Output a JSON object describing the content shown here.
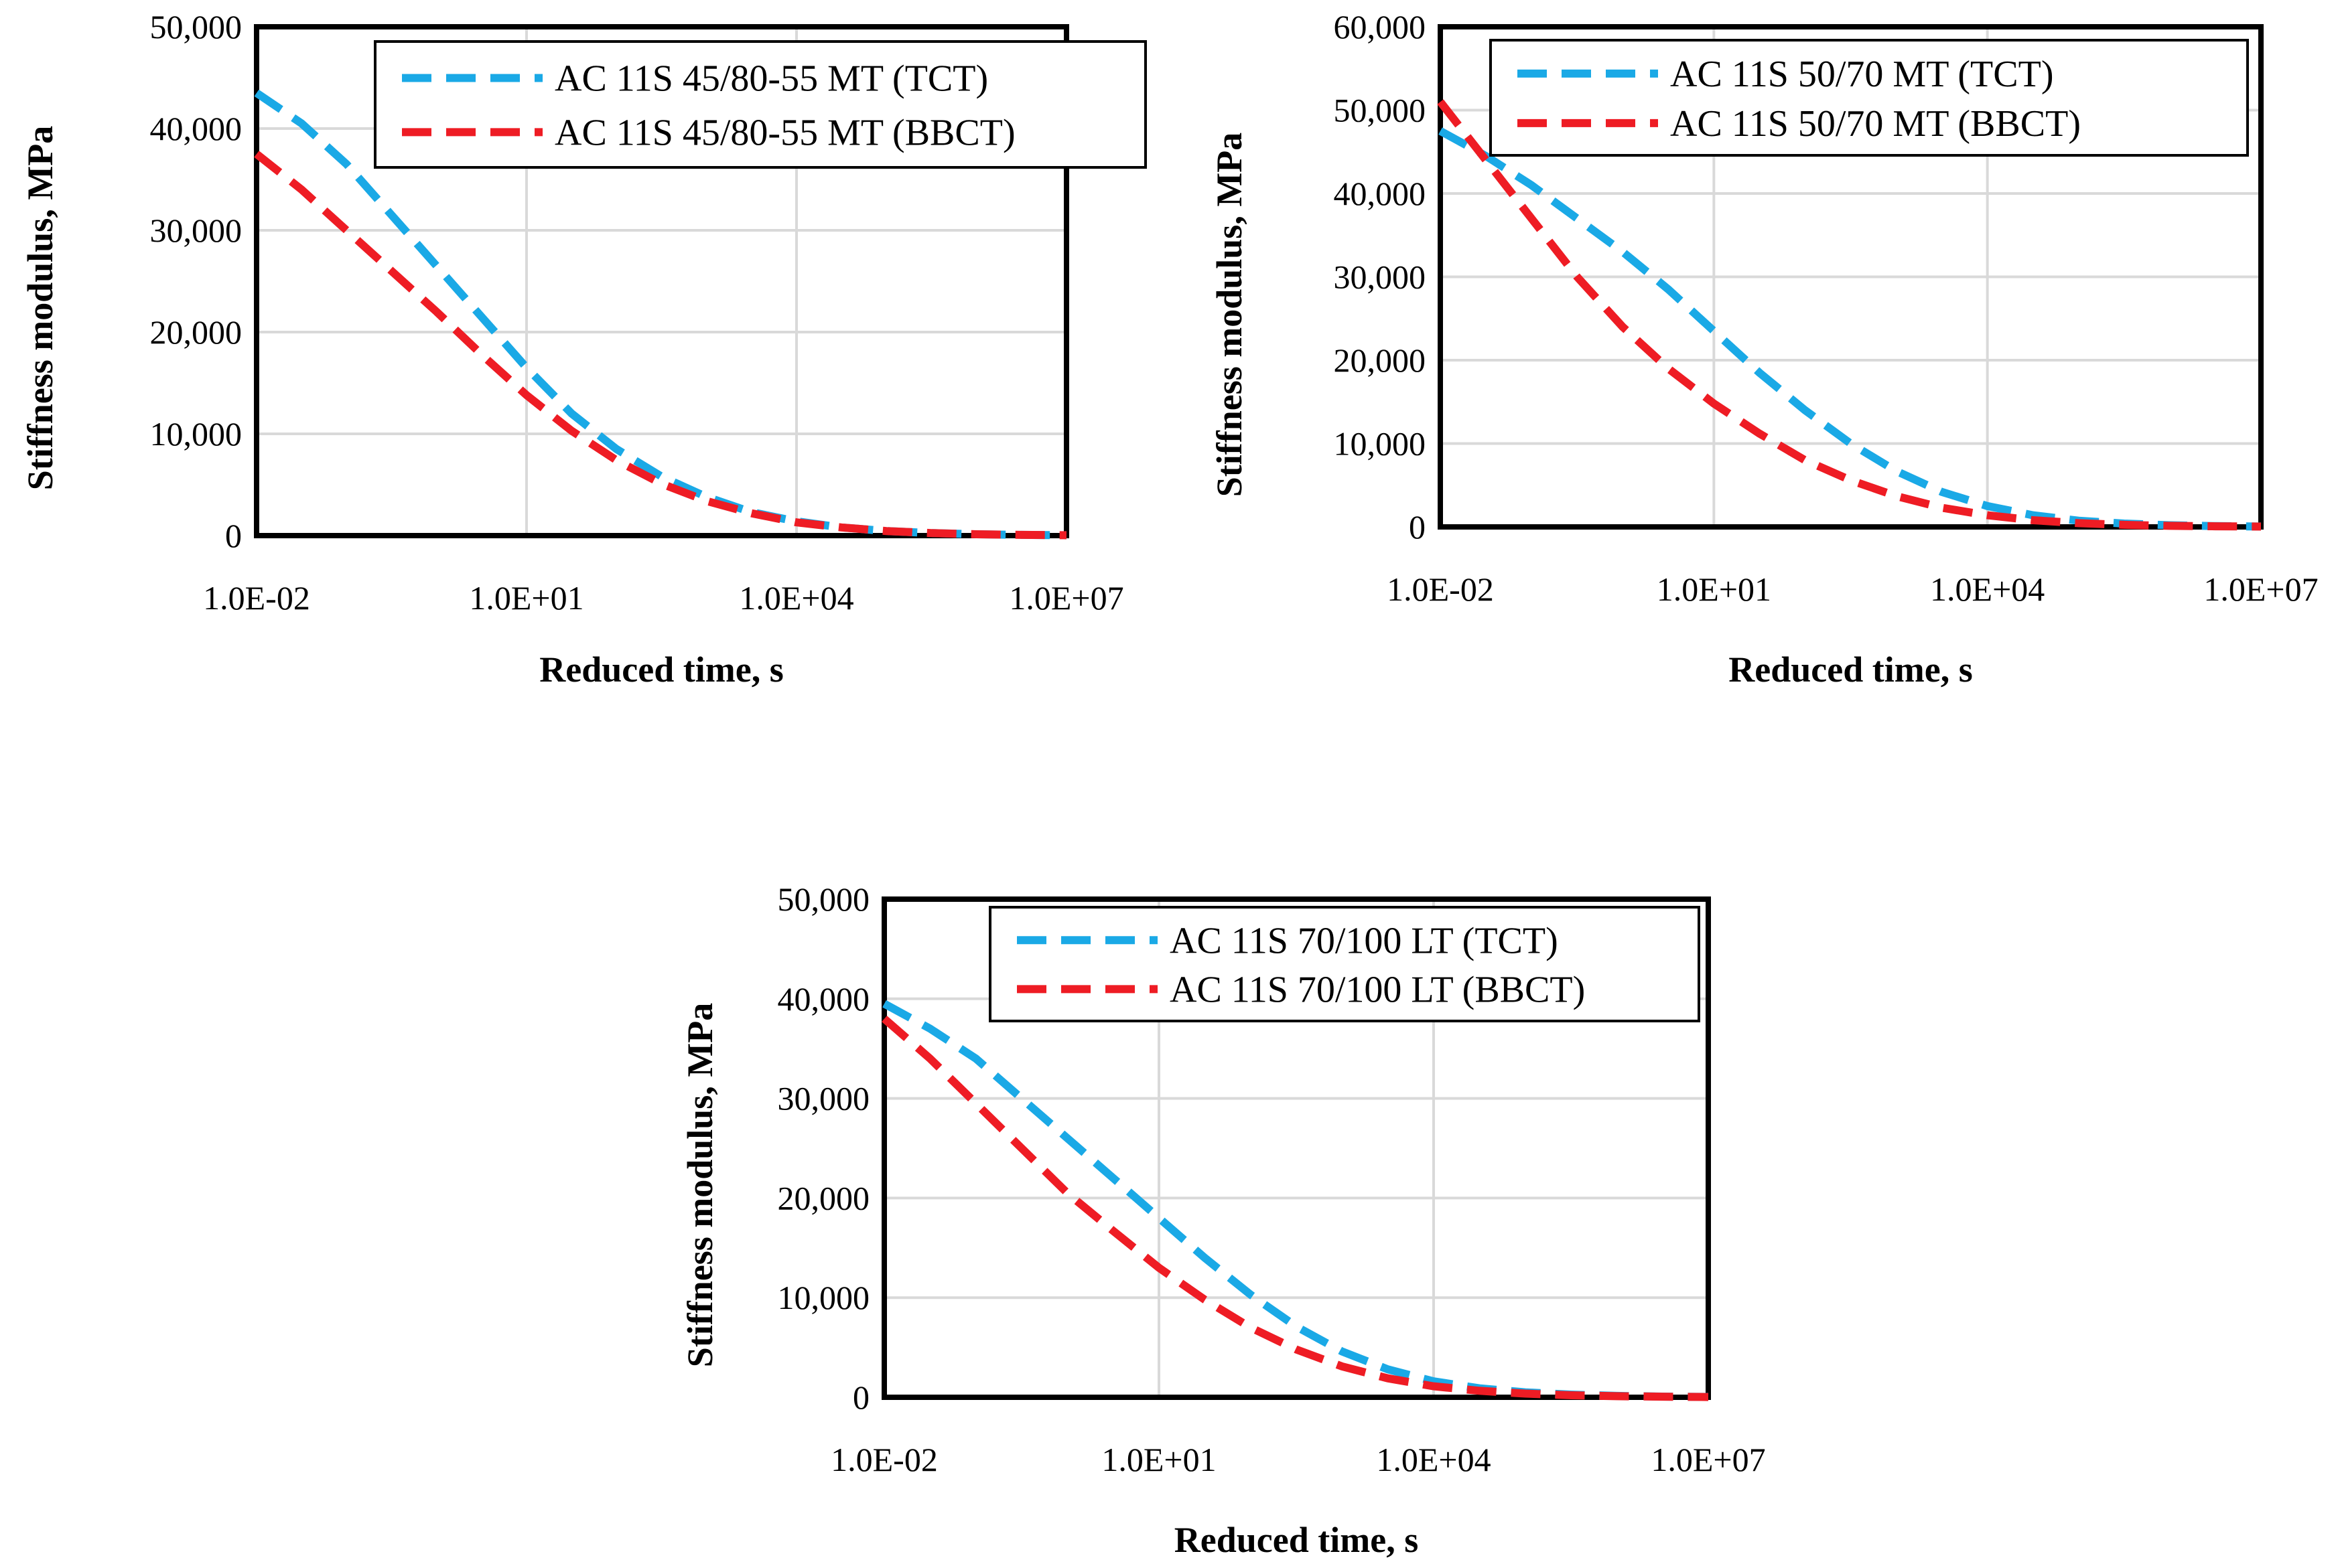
{
  "chart_data": [
    {
      "type": "line",
      "title": "",
      "xlabel": "Reduced time, s",
      "ylabel": "Stiffness modulus, MPa",
      "x_scale": "log",
      "xlim_log10": [
        -2,
        7
      ],
      "ylim": [
        0,
        50000
      ],
      "x_ticks_log10": [
        -2,
        1,
        4,
        7
      ],
      "x_tick_labels": [
        "1.0E-02",
        "1.0E+01",
        "1.0E+04",
        "1.0E+07"
      ],
      "y_ticks": [
        0,
        10000,
        20000,
        30000,
        40000,
        50000
      ],
      "y_tick_labels": [
        "0",
        "10,000",
        "20,000",
        "30,000",
        "40,000",
        "50,000"
      ],
      "grid": true,
      "legend_position": "top-right",
      "series": [
        {
          "name": "AC 11S 45/80-55 MT (TCT)",
          "color": "#1aa9e6",
          "x_log10": [
            -2,
            -1.5,
            -1,
            -0.5,
            0,
            0.5,
            1,
            1.5,
            2,
            2.5,
            3,
            3.5,
            4,
            4.5,
            5,
            5.5,
            6,
            6.5,
            7
          ],
          "y": [
            43500,
            40500,
            36500,
            31500,
            26500,
            21500,
            16500,
            12000,
            8500,
            5800,
            3800,
            2300,
            1400,
            800,
            450,
            250,
            130,
            70,
            40
          ]
        },
        {
          "name": "AC 11S 45/80-55 MT (BBCT)",
          "color": "#ee1c24",
          "x_log10": [
            -2,
            -1.5,
            -1,
            -0.5,
            0,
            0.5,
            1,
            1.5,
            2,
            2.5,
            3,
            3.5,
            4,
            4.5,
            5,
            5.5,
            6,
            6.5,
            7
          ],
          "y": [
            37500,
            34000,
            30000,
            26000,
            22000,
            17800,
            13800,
            10300,
            7400,
            5100,
            3400,
            2200,
            1300,
            800,
            450,
            250,
            130,
            70,
            40
          ]
        }
      ]
    },
    {
      "type": "line",
      "title": "",
      "xlabel": "Reduced time, s",
      "ylabel": "Stiffness modulus, MPa",
      "x_scale": "log",
      "xlim_log10": [
        -2,
        7
      ],
      "ylim": [
        0,
        60000
      ],
      "x_ticks_log10": [
        -2,
        1,
        4,
        7
      ],
      "x_tick_labels": [
        "1.0E-02",
        "1.0E+01",
        "1.0E+04",
        "1.0E+07"
      ],
      "y_ticks": [
        0,
        10000,
        20000,
        30000,
        40000,
        50000,
        60000
      ],
      "y_tick_labels": [
        "0",
        "10,000",
        "20,000",
        "30,000",
        "40,000",
        "50,000",
        "60,000"
      ],
      "grid": true,
      "legend_position": "top-right",
      "series": [
        {
          "name": "AC 11S 50/70 MT (TCT)",
          "color": "#1aa9e6",
          "x_log10": [
            -2,
            -1.5,
            -1,
            -0.5,
            0,
            0.5,
            1,
            1.5,
            2,
            2.5,
            3,
            3.5,
            4,
            4.5,
            5,
            5.5,
            6,
            6.5,
            7
          ],
          "y": [
            47500,
            44500,
            41000,
            37000,
            33000,
            28500,
            23500,
            18500,
            14000,
            10000,
            6700,
            4200,
            2500,
            1400,
            750,
            400,
            200,
            100,
            50
          ]
        },
        {
          "name": "AC 11S 50/70 MT (BBCT)",
          "color": "#ee1c24",
          "x_log10": [
            -2,
            -1.5,
            -1,
            -0.5,
            0,
            0.5,
            1,
            1.5,
            2,
            2.5,
            3,
            3.5,
            4,
            4.5,
            5,
            5.5,
            6,
            6.5,
            7
          ],
          "y": [
            51000,
            44000,
            37000,
            30000,
            24000,
            19000,
            14800,
            11200,
            8000,
            5600,
            3700,
            2300,
            1400,
            800,
            450,
            250,
            130,
            70,
            40
          ]
        }
      ]
    },
    {
      "type": "line",
      "title": "",
      "xlabel": "Reduced time, s",
      "ylabel": "Stiffness modulus, MPa",
      "x_scale": "log",
      "xlim_log10": [
        -2,
        7
      ],
      "ylim": [
        0,
        50000
      ],
      "x_ticks_log10": [
        -2,
        1,
        4,
        7
      ],
      "x_tick_labels": [
        "1.0E-02",
        "1.0E+01",
        "1.0E+04",
        "1.0E+07"
      ],
      "y_ticks": [
        0,
        10000,
        20000,
        30000,
        40000,
        50000
      ],
      "y_tick_labels": [
        "0",
        "10,000",
        "20,000",
        "30,000",
        "40,000",
        "50,000"
      ],
      "grid": true,
      "legend_position": "top-right",
      "series": [
        {
          "name": "AC 11S 70/100 LT (TCT)",
          "color": "#1aa9e6",
          "x_log10": [
            -2,
            -1.5,
            -1,
            -0.5,
            0,
            0.5,
            1,
            1.5,
            2,
            2.5,
            3,
            3.5,
            4,
            4.5,
            5,
            5.5,
            6,
            6.5,
            7
          ],
          "y": [
            39500,
            37000,
            34000,
            30000,
            26000,
            22000,
            18000,
            14000,
            10300,
            7100,
            4600,
            2800,
            1600,
            900,
            500,
            270,
            140,
            70,
            40
          ]
        },
        {
          "name": "AC 11S 70/100 LT (BBCT)",
          "color": "#ee1c24",
          "x_log10": [
            -2,
            -1.5,
            -1,
            -0.5,
            0,
            0.5,
            1,
            1.5,
            2,
            2.5,
            3,
            3.5,
            4,
            4.5,
            5,
            5.5,
            6,
            6.5,
            7
          ],
          "y": [
            38000,
            34000,
            29500,
            25000,
            20500,
            16700,
            13000,
            9800,
            7000,
            4800,
            3100,
            1900,
            1100,
            650,
            370,
            200,
            110,
            60,
            30
          ]
        }
      ]
    }
  ]
}
